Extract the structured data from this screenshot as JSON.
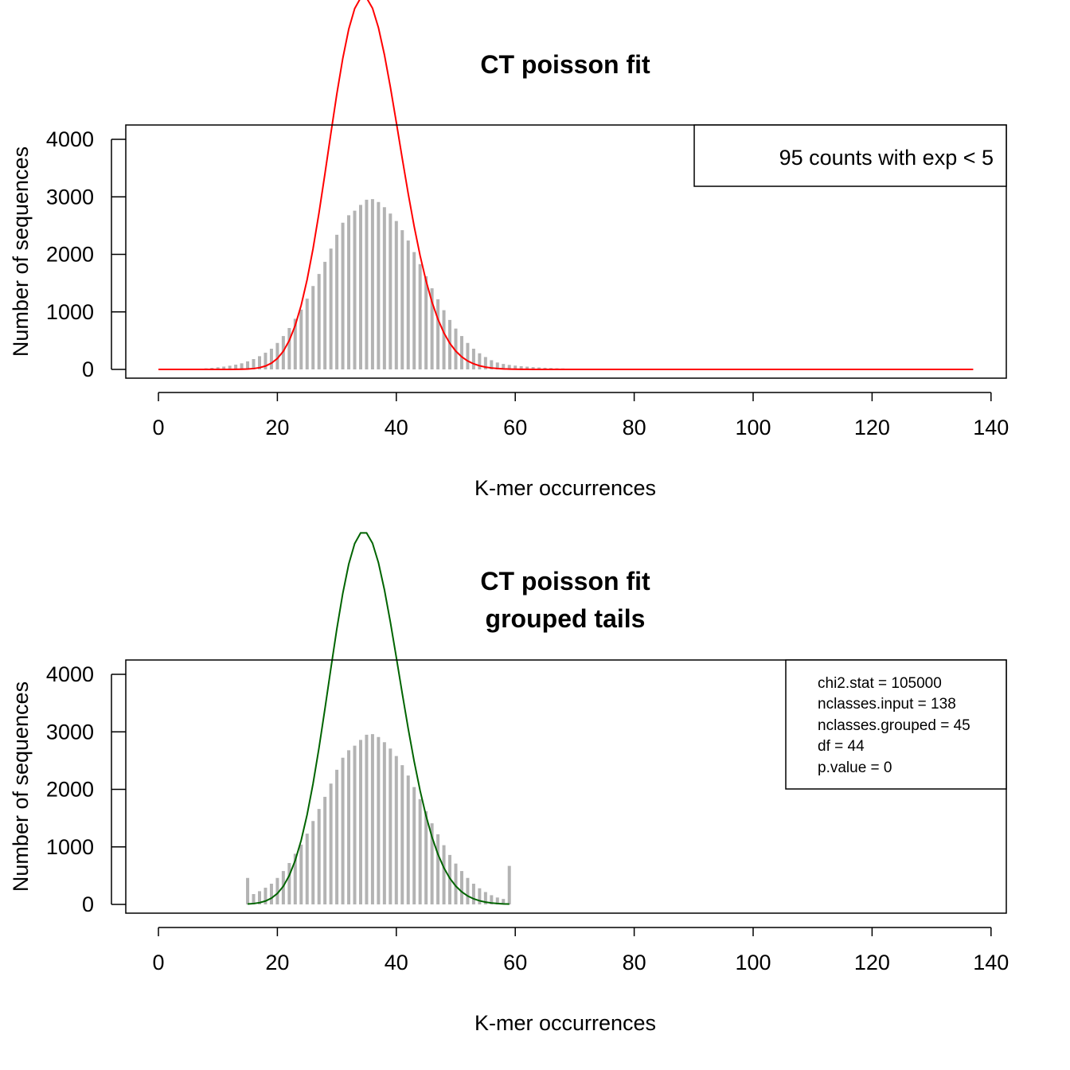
{
  "chart_data": [
    {
      "type": "bar",
      "title": "CT poisson fit",
      "subtitle": "",
      "xlabel": "K-mer occurrences",
      "ylabel": "Number of sequences",
      "xlim": [
        0,
        140
      ],
      "ylim": [
        0,
        4000
      ],
      "x_ticks": [
        0,
        20,
        40,
        60,
        80,
        100,
        120,
        140
      ],
      "y_ticks": [
        0,
        1000,
        2000,
        3000,
        4000
      ],
      "legend_text": [
        "95 counts with exp < 5"
      ],
      "legend_placement": "top-right",
      "bar_color": "#b3b3b3",
      "curve_color": "#ff0000",
      "observed": {
        "x_start": 0,
        "values": [
          0,
          0,
          1,
          2,
          4,
          6,
          9,
          14,
          19,
          27,
          37,
          49,
          64,
          83,
          106,
          140,
          180,
          230,
          290,
          360,
          460,
          580,
          720,
          880,
          1040,
          1230,
          1450,
          1660,
          1870,
          2100,
          2340,
          2550,
          2680,
          2760,
          2860,
          2950,
          2960,
          2910,
          2820,
          2710,
          2580,
          2420,
          2240,
          2040,
          1830,
          1620,
          1410,
          1220,
          1030,
          860,
          710,
          580,
          460,
          360,
          280,
          215,
          160,
          120,
          95,
          78,
          66,
          56,
          48,
          40,
          34,
          29,
          24,
          20,
          17,
          14,
          12,
          10,
          9,
          8,
          7,
          6,
          5,
          5,
          4,
          4,
          3,
          3,
          3,
          3,
          2,
          2,
          2,
          2,
          2,
          2,
          2,
          1,
          1,
          1,
          1,
          1,
          1,
          1,
          1,
          1,
          1,
          1,
          1,
          1,
          1,
          1,
          1,
          1,
          1,
          1,
          1,
          1,
          1,
          1,
          1,
          1,
          1,
          1,
          1,
          1,
          1,
          1,
          1,
          1,
          1,
          1,
          1,
          1,
          1,
          1,
          1,
          1,
          1,
          1,
          1,
          1,
          1,
          1
        ]
      },
      "expected_curve": {
        "distribution": "poisson",
        "lambda": 35,
        "total": 96000,
        "x_range": [
          0,
          137
        ]
      }
    },
    {
      "type": "bar",
      "title": "CT poisson fit",
      "subtitle": "grouped tails",
      "xlabel": "K-mer occurrences",
      "ylabel": "Number of sequences",
      "xlim": [
        0,
        140
      ],
      "ylim": [
        0,
        4000
      ],
      "x_ticks": [
        0,
        20,
        40,
        60,
        80,
        100,
        120,
        140
      ],
      "y_ticks": [
        0,
        1000,
        2000,
        3000,
        4000
      ],
      "legend_text": [
        "chi2.stat = 105000",
        "nclasses.input = 138",
        "nclasses.grouped = 45",
        "df = 44",
        "p.value = 0"
      ],
      "legend_placement": "top-right",
      "bar_color": "#b3b3b3",
      "curve_color": "#006400",
      "observed": {
        "x_start": 15,
        "values": [
          460,
          180,
          230,
          290,
          360,
          460,
          580,
          720,
          880,
          1040,
          1230,
          1450,
          1660,
          1870,
          2100,
          2340,
          2550,
          2680,
          2760,
          2860,
          2950,
          2960,
          2910,
          2820,
          2710,
          2580,
          2420,
          2240,
          2040,
          1830,
          1620,
          1410,
          1220,
          1030,
          860,
          710,
          580,
          460,
          360,
          280,
          215,
          160,
          120,
          95,
          670
        ]
      },
      "expected_curve": {
        "distribution": "poisson",
        "lambda": 35,
        "total": 96000,
        "x_range": [
          15,
          59
        ]
      }
    }
  ]
}
